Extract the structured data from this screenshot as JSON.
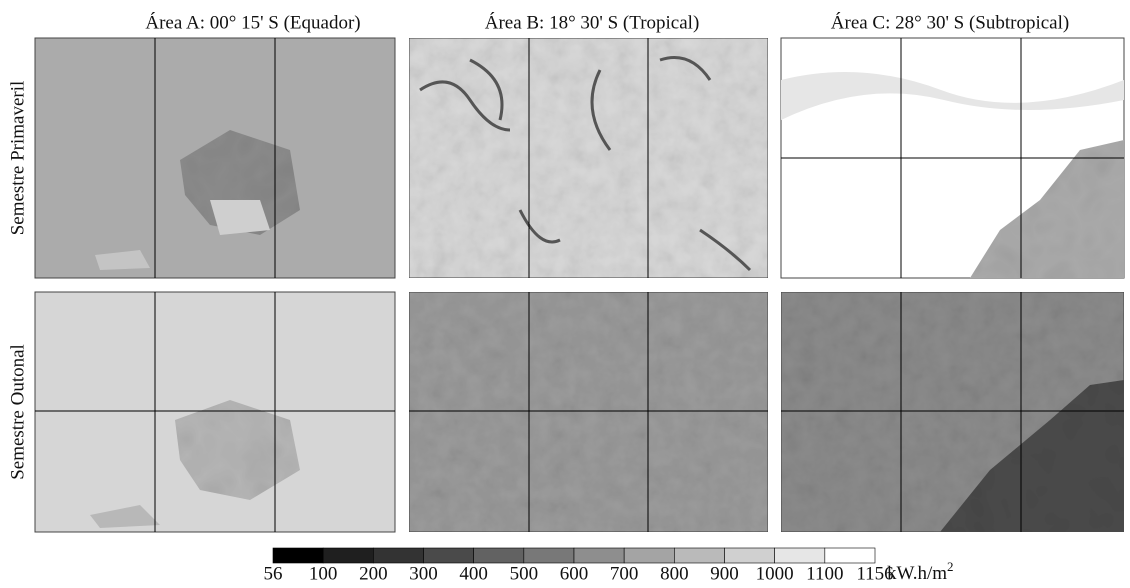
{
  "columns": [
    "Área A:  00° 15' S  (Equador)",
    "Área B:  18° 30' S  (Tropical)",
    "Área C:  28° 30' S  (Subtropical)"
  ],
  "rows": [
    "Semestre Primaveril",
    "Semestre Outonal"
  ],
  "colorbar": {
    "ticks": [
      56,
      100,
      200,
      300,
      400,
      500,
      600,
      700,
      800,
      900,
      1000,
      1100,
      1156
    ],
    "colors": [
      "#000000",
      "#1f1f1f",
      "#333333",
      "#4a4a4a",
      "#626262",
      "#787878",
      "#8e8e8e",
      "#a4a4a4",
      "#bababa",
      "#d0d0d0",
      "#e6e6e6",
      "#ffffff"
    ],
    "unit": "kW.h/m",
    "unit_superscript": "2"
  }
}
